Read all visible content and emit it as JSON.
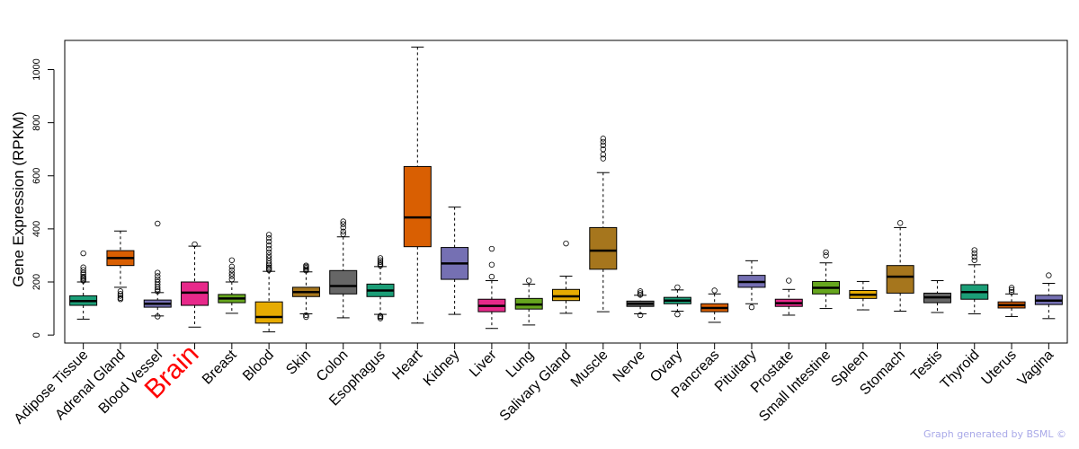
{
  "chart_data": {
    "type": "boxplot",
    "ylabel": "Gene Expression (RPKM)",
    "ylim": [
      -30,
      1110
    ],
    "yticks": [
      0,
      200,
      400,
      600,
      800,
      1000
    ],
    "highlight_category": "Brain",
    "highlight_color": "#ff0000",
    "categories": [
      {
        "name": "Adipose Tissue",
        "color": "#1b9e77",
        "min": 60,
        "q1": 112,
        "median": 128,
        "q3": 148,
        "max": 200,
        "outliers": [
          205,
          210,
          215,
          220,
          228,
          235,
          245,
          255,
          308
        ]
      },
      {
        "name": "Adrenal Gland",
        "color": "#d95f02",
        "min": 180,
        "q1": 262,
        "median": 290,
        "q3": 318,
        "max": 392,
        "outliers": [
          135,
          140,
          148,
          155,
          165
        ]
      },
      {
        "name": "Blood Vessel",
        "color": "#7570b3",
        "min": 72,
        "q1": 105,
        "median": 118,
        "q3": 132,
        "max": 160,
        "outliers": [
          70,
          165,
          172,
          180,
          190,
          200,
          210,
          222,
          235,
          420
        ]
      },
      {
        "name": "Brain",
        "color": "#e7298a",
        "min": 30,
        "q1": 112,
        "median": 160,
        "q3": 200,
        "max": 335,
        "outliers": [
          342
        ]
      },
      {
        "name": "Breast",
        "color": "#66a61e",
        "min": 82,
        "q1": 122,
        "median": 138,
        "q3": 153,
        "max": 200,
        "outliers": [
          210,
          222,
          232,
          245,
          258,
          282
        ]
      },
      {
        "name": "Blood",
        "color": "#e6ab02",
        "min": 12,
        "q1": 45,
        "median": 68,
        "q3": 125,
        "max": 240,
        "outliers": [
          245,
          250,
          255,
          262,
          270,
          280,
          290,
          300,
          312,
          325,
          338,
          352,
          365,
          378
        ]
      },
      {
        "name": "Skin",
        "color": "#a6761d",
        "min": 80,
        "q1": 145,
        "median": 162,
        "q3": 180,
        "max": 238,
        "outliers": [
          68,
          75,
          243,
          248,
          253,
          258,
          262
        ]
      },
      {
        "name": "Colon",
        "color": "#666666",
        "min": 65,
        "q1": 155,
        "median": 185,
        "q3": 243,
        "max": 370,
        "outliers": [
          380,
          390,
          405,
          418,
          428
        ]
      },
      {
        "name": "Esophagus",
        "color": "#1b9e77",
        "min": 78,
        "q1": 145,
        "median": 168,
        "q3": 192,
        "max": 258,
        "outliers": [
          63,
          68,
          72,
          262,
          268,
          275,
          282,
          290
        ]
      },
      {
        "name": "Heart",
        "color": "#d95f02",
        "min": 45,
        "q1": 333,
        "median": 443,
        "q3": 635,
        "max": 1085,
        "outliers": []
      },
      {
        "name": "Kidney",
        "color": "#7570b3",
        "min": 78,
        "q1": 210,
        "median": 270,
        "q3": 330,
        "max": 482,
        "outliers": []
      },
      {
        "name": "Liver",
        "color": "#e7298a",
        "min": 25,
        "q1": 88,
        "median": 110,
        "q3": 135,
        "max": 205,
        "outliers": [
          220,
          265,
          325
        ]
      },
      {
        "name": "Lung",
        "color": "#66a61e",
        "min": 38,
        "q1": 98,
        "median": 115,
        "q3": 138,
        "max": 192,
        "outliers": [
          205
        ]
      },
      {
        "name": "Salivary Gland",
        "color": "#e6ab02",
        "min": 82,
        "q1": 130,
        "median": 146,
        "q3": 172,
        "max": 222,
        "outliers": [
          345
        ]
      },
      {
        "name": "Muscle",
        "color": "#a6761d",
        "min": 88,
        "q1": 248,
        "median": 318,
        "q3": 405,
        "max": 612,
        "outliers": [
          665,
          680,
          700,
          715,
          728,
          740
        ]
      },
      {
        "name": "Nerve",
        "color": "#666666",
        "min": 80,
        "q1": 108,
        "median": 118,
        "q3": 128,
        "max": 150,
        "outliers": [
          75,
          152,
          158,
          165
        ]
      },
      {
        "name": "Ovary",
        "color": "#1b9e77",
        "min": 90,
        "q1": 118,
        "median": 130,
        "q3": 142,
        "max": 170,
        "outliers": [
          78,
          180
        ]
      },
      {
        "name": "Pancreas",
        "color": "#d95f02",
        "min": 48,
        "q1": 88,
        "median": 102,
        "q3": 118,
        "max": 155,
        "outliers": [
          168
        ]
      },
      {
        "name": "Pituitary",
        "color": "#7570b3",
        "min": 118,
        "q1": 180,
        "median": 200,
        "q3": 225,
        "max": 280,
        "outliers": [
          105
        ]
      },
      {
        "name": "Prostate",
        "color": "#e7298a",
        "min": 75,
        "q1": 108,
        "median": 120,
        "q3": 135,
        "max": 172,
        "outliers": [
          205
        ]
      },
      {
        "name": "Small Intestine",
        "color": "#66a61e",
        "min": 100,
        "q1": 155,
        "median": 178,
        "q3": 202,
        "max": 272,
        "outliers": [
          300,
          312
        ]
      },
      {
        "name": "Spleen",
        "color": "#e6ab02",
        "min": 95,
        "q1": 138,
        "median": 152,
        "q3": 168,
        "max": 202,
        "outliers": []
      },
      {
        "name": "Stomach",
        "color": "#a6761d",
        "min": 90,
        "q1": 158,
        "median": 220,
        "q3": 262,
        "max": 405,
        "outliers": [
          422
        ]
      },
      {
        "name": "Testis",
        "color": "#666666",
        "min": 85,
        "q1": 122,
        "median": 142,
        "q3": 158,
        "max": 205,
        "outliers": []
      },
      {
        "name": "Thyroid",
        "color": "#1b9e77",
        "min": 80,
        "q1": 135,
        "median": 162,
        "q3": 190,
        "max": 265,
        "outliers": [
          282,
          295,
          308,
          320
        ]
      },
      {
        "name": "Uterus",
        "color": "#d95f02",
        "min": 70,
        "q1": 102,
        "median": 113,
        "q3": 125,
        "max": 155,
        "outliers": [
          162,
          170,
          178
        ]
      },
      {
        "name": "Vagina",
        "color": "#7570b3",
        "min": 62,
        "q1": 115,
        "median": 130,
        "q3": 150,
        "max": 195,
        "outliers": [
          225
        ]
      }
    ]
  },
  "credit": "Graph generated by BSML ©"
}
